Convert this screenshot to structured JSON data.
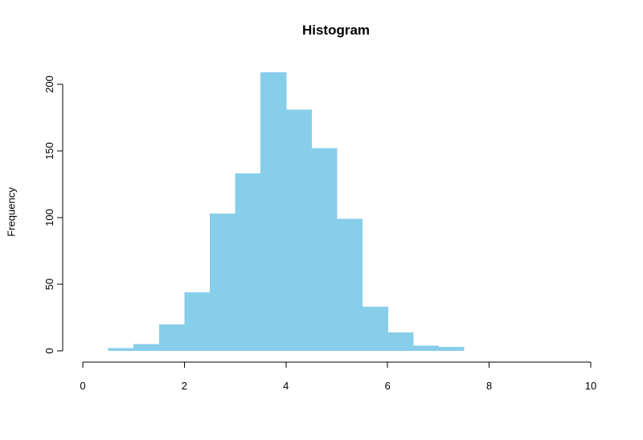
{
  "chart_data": {
    "type": "bar",
    "title": "Histogram",
    "xlabel": "",
    "ylabel": "Frequency",
    "bins": [
      {
        "start": 0.5,
        "end": 1.0,
        "count": 2
      },
      {
        "start": 1.0,
        "end": 1.5,
        "count": 5
      },
      {
        "start": 1.5,
        "end": 2.0,
        "count": 20
      },
      {
        "start": 2.0,
        "end": 2.5,
        "count": 44
      },
      {
        "start": 2.5,
        "end": 3.0,
        "count": 103
      },
      {
        "start": 3.0,
        "end": 3.5,
        "count": 133
      },
      {
        "start": 3.5,
        "end": 4.0,
        "count": 209
      },
      {
        "start": 4.0,
        "end": 4.5,
        "count": 181
      },
      {
        "start": 4.5,
        "end": 5.0,
        "count": 152
      },
      {
        "start": 5.0,
        "end": 5.5,
        "count": 99
      },
      {
        "start": 5.5,
        "end": 6.0,
        "count": 33
      },
      {
        "start": 6.0,
        "end": 6.5,
        "count": 14
      },
      {
        "start": 6.5,
        "end": 7.0,
        "count": 4
      },
      {
        "start": 7.0,
        "end": 7.5,
        "count": 3
      }
    ],
    "xlim": [
      0,
      10
    ],
    "ylim": [
      0,
      209
    ],
    "x_ticks": [
      0,
      2,
      4,
      6,
      8,
      10
    ],
    "y_ticks": [
      0,
      50,
      100,
      150,
      200
    ],
    "bar_color": "#87CEEB",
    "grid": false,
    "legend": "none"
  }
}
